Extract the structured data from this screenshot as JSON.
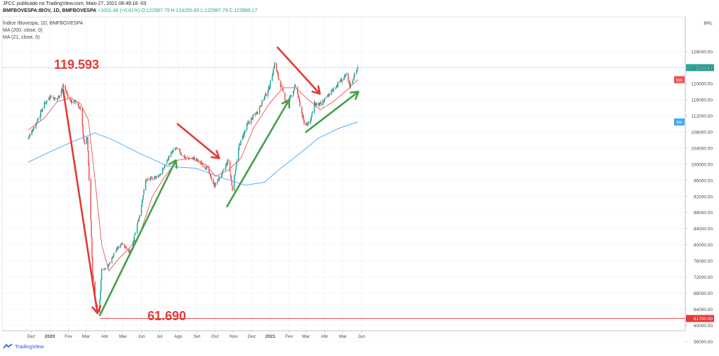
{
  "header": {
    "published": "JFCC publicado no TradingView.com, Maio 27, 2021 08:49:18 -03",
    "symbol_line": "BMFBOVESPA:IBOV, 1D, BMFBOVESPA",
    "change": "+1001.46 (+0.81%)",
    "ohlc": "O:122987.79  H:124255.69  L:122987.79  C:123989.17",
    "instrument": "Índice IBovespa, 1D, BMFBOVESPA",
    "ma200": "MA (200, close, 0)",
    "ma21": "MA (21, close, 0)"
  },
  "footer": {
    "brand": "TradingView"
  },
  "colors": {
    "up": "#26a69a",
    "down": "#ef5350",
    "ma21": "#ef5350",
    "ma200": "#42a5f5",
    "arrow_red": "#e53935",
    "arrow_green": "#43a047",
    "level_line": "#e53935"
  },
  "chart_data": {
    "type": "candlestick",
    "currency": "BRL",
    "x_ticks": [
      "Dez",
      "2020",
      "Fev",
      "Mar",
      "Abr",
      "Mai",
      "Jun",
      "Jul",
      "Ago",
      "Set",
      "Out",
      "Nov",
      "Dez",
      "2021",
      "Fev",
      "Mar",
      "Abr",
      "Mai",
      "Jun"
    ],
    "ylim": [
      55000,
      131000
    ],
    "y_ticks": [
      56000,
      60000,
      64000,
      68000,
      72000,
      76000,
      80000,
      84000,
      88000,
      92000,
      96000,
      100000,
      104000,
      108000,
      112000,
      116000,
      120000,
      124000,
      128000
    ],
    "y_tick_labels": [
      "56000.00",
      "60000.00",
      "64000.00",
      "68000.00",
      "72000.00",
      "76000.00",
      "80000.00",
      "84000.00",
      "88000.00",
      "92000.00",
      "96000.00",
      "100000.00",
      "104000.00",
      "108000.00",
      "112000.00",
      "116000.00",
      "120000.00",
      "124000.00",
      "128000.00"
    ],
    "last_price": 123989.17,
    "last_price_label": "123989.17",
    "level_price": 61700,
    "level_label": "61700.00",
    "ma_tags": [
      "MA",
      "MA"
    ],
    "close_path": [
      [
        "2019-11-26",
        106500
      ],
      [
        "2019-12-10",
        110500
      ],
      [
        "2019-12-23",
        115000
      ],
      [
        "2020-01-02",
        117000
      ],
      [
        "2020-01-13",
        116000
      ],
      [
        "2020-01-23",
        119500
      ],
      [
        "2020-02-05",
        115500
      ],
      [
        "2020-02-14",
        115500
      ],
      [
        "2020-02-21",
        113500
      ],
      [
        "2020-02-27",
        105000
      ],
      [
        "2020-03-03",
        106500
      ],
      [
        "2020-03-09",
        86000
      ],
      [
        "2020-03-12",
        72500
      ],
      [
        "2020-03-16",
        66000
      ],
      [
        "2020-03-23",
        63600
      ],
      [
        "2020-03-27",
        74000
      ],
      [
        "2020-04-06",
        74500
      ],
      [
        "2020-04-17",
        78000
      ],
      [
        "2020-04-29",
        80500
      ],
      [
        "2020-05-14",
        78000
      ],
      [
        "2020-05-29",
        87500
      ],
      [
        "2020-06-08",
        96000
      ],
      [
        "2020-06-19",
        96500
      ],
      [
        "2020-07-03",
        97500
      ],
      [
        "2020-07-17",
        102000
      ],
      [
        "2020-07-28",
        104000
      ],
      [
        "2020-08-13",
        101500
      ],
      [
        "2020-08-28",
        101500
      ],
      [
        "2020-09-18",
        99000
      ],
      [
        "2020-09-30",
        94600
      ],
      [
        "2020-10-14",
        98000
      ],
      [
        "2020-10-23",
        101000
      ],
      [
        "2020-10-30",
        93900
      ],
      [
        "2020-11-10",
        104500
      ],
      [
        "2020-11-24",
        110000
      ],
      [
        "2020-12-10",
        113000
      ],
      [
        "2020-12-30",
        119000
      ],
      [
        "2021-01-08",
        125000
      ],
      [
        "2021-01-15",
        121000
      ],
      [
        "2021-01-28",
        115000
      ],
      [
        "2021-02-12",
        119500
      ],
      [
        "2021-02-26",
        110000
      ],
      [
        "2021-03-08",
        110600
      ],
      [
        "2021-03-15",
        115000
      ],
      [
        "2021-03-26",
        114800
      ],
      [
        "2021-04-12",
        118000
      ],
      [
        "2021-04-26",
        120500
      ],
      [
        "2021-05-07",
        122000
      ],
      [
        "2021-05-13",
        119500
      ],
      [
        "2021-05-26",
        123989
      ]
    ],
    "ma21_path": [
      [
        "2019-11-26",
        108500
      ],
      [
        "2019-12-23",
        111500
      ],
      [
        "2020-01-13",
        115500
      ],
      [
        "2020-02-05",
        116500
      ],
      [
        "2020-02-21",
        115000
      ],
      [
        "2020-03-05",
        111000
      ],
      [
        "2020-03-16",
        96000
      ],
      [
        "2020-03-27",
        80000
      ],
      [
        "2020-04-08",
        73500
      ],
      [
        "2020-04-24",
        76500
      ],
      [
        "2020-05-14",
        79500
      ],
      [
        "2020-05-29",
        82500
      ],
      [
        "2020-06-19",
        92000
      ],
      [
        "2020-07-10",
        97000
      ],
      [
        "2020-07-31",
        101000
      ],
      [
        "2020-08-21",
        101500
      ],
      [
        "2020-09-15",
        100000
      ],
      [
        "2020-10-02",
        97000
      ],
      [
        "2020-10-23",
        98500
      ],
      [
        "2020-11-13",
        101500
      ],
      [
        "2020-12-04",
        109000
      ],
      [
        "2020-12-30",
        115000
      ],
      [
        "2021-01-22",
        119000
      ],
      [
        "2021-02-12",
        119000
      ],
      [
        "2021-03-05",
        116000
      ],
      [
        "2021-03-25",
        113500
      ],
      [
        "2021-04-15",
        115500
      ],
      [
        "2021-05-05",
        118000
      ],
      [
        "2021-05-26",
        121000
      ]
    ],
    "ma200_path": [
      [
        "2019-11-26",
        100500
      ],
      [
        "2019-12-31",
        103000
      ],
      [
        "2020-02-14",
        106000
      ],
      [
        "2020-03-16",
        107800
      ],
      [
        "2020-04-15",
        106000
      ],
      [
        "2020-06-01",
        102500
      ],
      [
        "2020-07-15",
        99500
      ],
      [
        "2020-08-31",
        99000
      ],
      [
        "2020-10-15",
        96500
      ],
      [
        "2020-11-20",
        94800
      ],
      [
        "2020-12-22",
        95500
      ],
      [
        "2021-01-18",
        99000
      ],
      [
        "2021-02-17",
        102500
      ],
      [
        "2021-03-22",
        106500
      ],
      [
        "2021-04-26",
        109000
      ],
      [
        "2021-05-26",
        110500
      ]
    ],
    "annotations": [
      {
        "kind": "label",
        "text": "119.593",
        "color": "#e53935"
      },
      {
        "kind": "label",
        "text": "61.690",
        "color": "#e53935"
      }
    ],
    "arrows": [
      {
        "color": "#e53935",
        "from": [
          "2020-01-23",
          118500
        ],
        "to": [
          "2020-03-20",
          63000
        ]
      },
      {
        "color": "#43a047",
        "from": [
          "2020-03-24",
          62500
        ],
        "to": [
          "2020-07-28",
          101000
        ]
      },
      {
        "color": "#e53935",
        "from": [
          "2020-07-31",
          110000
        ],
        "to": [
          "2020-10-08",
          101500
        ]
      },
      {
        "color": "#43a047",
        "from": [
          "2020-10-21",
          89500
        ],
        "to": [
          "2021-02-01",
          116000
        ]
      },
      {
        "color": "#e53935",
        "from": [
          "2021-01-13",
          129000
        ],
        "to": [
          "2021-03-24",
          117500
        ]
      },
      {
        "color": "#43a047",
        "from": [
          "2021-03-01",
          108000
        ],
        "to": [
          "2021-05-27",
          118000
        ]
      }
    ]
  }
}
